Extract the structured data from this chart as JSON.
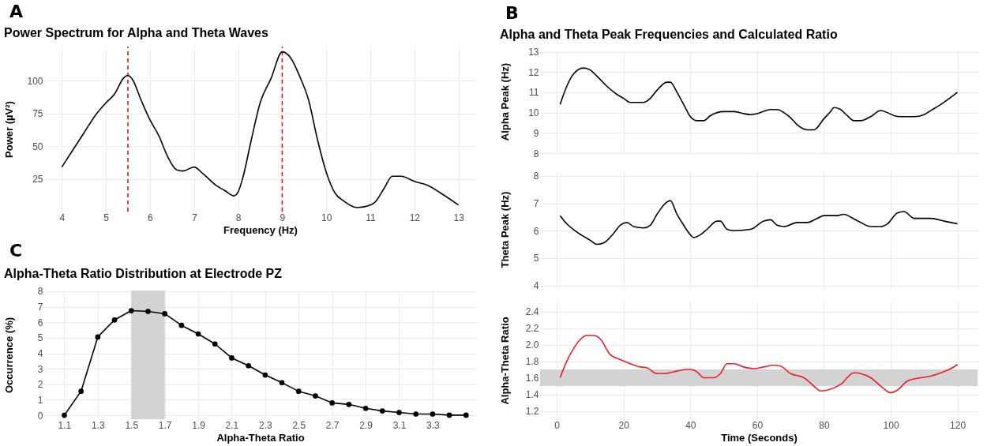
{
  "chart_data": [
    {
      "type": "line",
      "title": "Power Spectrum for Alpha and Theta Waves",
      "xlabel": "Frequency (Hz)",
      "ylabel": "Power (µV²)",
      "annotations": [
        "A"
      ],
      "series": [
        {
          "color": "#000000",
          "x": [
            4,
            4.25,
            4.5,
            4.75,
            5,
            5.2,
            5.4,
            5.5,
            5.6,
            5.8,
            6,
            6.2,
            6.4,
            6.6,
            6.75,
            7,
            7.2,
            7.5,
            7.7,
            7.9,
            8,
            8.1,
            8.3,
            8.5,
            8.75,
            9,
            9.2,
            9.4,
            9.6,
            9.8,
            10,
            10.2,
            10.4,
            10.7,
            11,
            11.1,
            11.3,
            11.5,
            11.7,
            12,
            12.3,
            12.6,
            13
          ],
          "values": [
            34,
            47,
            60,
            73,
            83,
            90,
            102,
            104,
            101,
            85,
            70,
            58,
            42,
            32,
            31,
            34,
            29,
            20,
            16,
            12,
            15,
            25,
            55,
            83,
            102,
            122,
            117,
            103,
            85,
            55,
            30,
            14,
            8,
            3,
            5,
            7,
            17,
            27,
            27,
            23,
            20,
            14,
            5
          ]
        }
      ],
      "ref_lines": [
        {
          "axis": "x",
          "value": 5.5,
          "color": "#ff0000",
          "line_style": "dashed"
        },
        {
          "axis": "x",
          "value": 9,
          "color": "#ff0000",
          "line_style": "dashed"
        }
      ],
      "xlim": [
        3.6,
        13.4
      ],
      "xticks": [
        4,
        5,
        6,
        7,
        8,
        9,
        10,
        11,
        12,
        13
      ],
      "ylim": [
        0,
        126
      ],
      "yticks": [
        25,
        50,
        75,
        100
      ],
      "grid": true
    },
    {
      "type": "line",
      "title": "Alpha and Theta Peak Frequencies and Calculated Ratio",
      "ylabel": "Alpha Peak (Hz)",
      "annotations": [
        "B"
      ],
      "series": [
        {
          "color": "#000000",
          "x": [
            1,
            3,
            5,
            8,
            10,
            12,
            15,
            18,
            20,
            22,
            26,
            28,
            30,
            33,
            34,
            36,
            38,
            40,
            42,
            44,
            46,
            50,
            53,
            56,
            58,
            60,
            64,
            66,
            68,
            70,
            72,
            75,
            77,
            80,
            82,
            83,
            85,
            87,
            89,
            91,
            94,
            97,
            99,
            101,
            103,
            107,
            110,
            112,
            115,
            120
          ],
          "values": [
            10.4,
            11.3,
            11.9,
            12.2,
            12.1,
            11.8,
            11.3,
            10.9,
            10.7,
            10.5,
            10.5,
            10.7,
            11.1,
            11.5,
            11.5,
            11,
            10.4,
            9.8,
            9.6,
            9.6,
            9.85,
            10.05,
            10.05,
            9.95,
            9.9,
            9.95,
            10.15,
            10.15,
            10,
            9.75,
            9.4,
            9.15,
            9.15,
            9.7,
            10.05,
            10.25,
            10.15,
            9.85,
            9.6,
            9.6,
            9.8,
            10.1,
            10,
            9.85,
            9.8,
            9.8,
            9.9,
            10.1,
            10.4,
            11
          ]
        }
      ],
      "xlim": [
        -5,
        126
      ],
      "xticks": [
        0,
        20,
        40,
        60,
        80,
        100,
        120
      ],
      "ylim": [
        8,
        13.1
      ],
      "yticks": [
        8,
        9,
        10,
        11,
        12,
        13
      ],
      "grid": true,
      "tick_labels": "y"
    },
    {
      "type": "line",
      "ylabel": "Theta Peak (Hz)",
      "series": [
        {
          "color": "#000000",
          "x": [
            1,
            3,
            6,
            10,
            12,
            14,
            17,
            19,
            21,
            23,
            26,
            28,
            30,
            33,
            34,
            36,
            38,
            40,
            41,
            43,
            45,
            48,
            49,
            51,
            53,
            58,
            62,
            64,
            66,
            68,
            72,
            75,
            78,
            80,
            84,
            86,
            88,
            91,
            94,
            97,
            99,
            102,
            104,
            107,
            112,
            116,
            120
          ],
          "values": [
            6.55,
            6.25,
            5.95,
            5.65,
            5.5,
            5.55,
            5.9,
            6.2,
            6.3,
            6.15,
            6.1,
            6.2,
            6.6,
            7.05,
            7.1,
            6.6,
            6.2,
            5.85,
            5.75,
            5.85,
            6.05,
            6.35,
            6.35,
            6.05,
            6,
            6.05,
            6.35,
            6.4,
            6.2,
            6.15,
            6.3,
            6.3,
            6.45,
            6.55,
            6.55,
            6.6,
            6.5,
            6.3,
            6.15,
            6.15,
            6.25,
            6.65,
            6.7,
            6.45,
            6.45,
            6.35,
            6.25
          ]
        }
      ],
      "xlim": [
        -5,
        126
      ],
      "xticks": [
        0,
        20,
        40,
        60,
        80,
        100,
        120
      ],
      "ylim": [
        3.9,
        8.2
      ],
      "yticks": [
        4,
        5,
        6,
        7,
        8
      ],
      "grid": true,
      "tick_labels": "y"
    },
    {
      "type": "line",
      "xlabel": "Time (Seconds)",
      "ylabel": "Alpha-Theta Ratio",
      "series": [
        {
          "color": "#ee1c25",
          "x": [
            1,
            3,
            5,
            7,
            9,
            11,
            13,
            16,
            19,
            22,
            25,
            27,
            30,
            32,
            36,
            39,
            40,
            42,
            44,
            47,
            49,
            51,
            53,
            56,
            59,
            62,
            65,
            67,
            70,
            74,
            77,
            79,
            81,
            85,
            89,
            91,
            94,
            97,
            100,
            102,
            105,
            109,
            112,
            115,
            118,
            120
          ],
          "values": [
            1.6,
            1.8,
            1.95,
            2.06,
            2.11,
            2.11,
            2.07,
            1.88,
            1.82,
            1.77,
            1.73,
            1.72,
            1.65,
            1.65,
            1.68,
            1.7,
            1.7,
            1.67,
            1.6,
            1.6,
            1.65,
            1.77,
            1.77,
            1.73,
            1.71,
            1.73,
            1.75,
            1.74,
            1.65,
            1.6,
            1.5,
            1.44,
            1.45,
            1.52,
            1.66,
            1.65,
            1.6,
            1.5,
            1.42,
            1.45,
            1.56,
            1.6,
            1.62,
            1.66,
            1.71,
            1.76
          ]
        }
      ],
      "bands": [
        {
          "axis": "y",
          "from": 1.5,
          "to": 1.7,
          "color": "#d3d3d3"
        }
      ],
      "xlim": [
        -5,
        126
      ],
      "xticks": [
        0,
        20,
        40,
        60,
        80,
        100,
        120
      ],
      "ylim": [
        1.1,
        2.52
      ],
      "yticks": [
        1.2,
        1.4,
        1.6,
        1.8,
        {
          "value": 2,
          "label": "2.0"
        },
        2.2,
        2.4
      ],
      "grid": true
    },
    {
      "type": "line",
      "title": "Alpha-Theta Ratio Distribution at Electrode PZ",
      "xlabel": "Alpha-Theta Ratio",
      "ylabel": "Occurrence (%)",
      "annotations": [
        "C"
      ],
      "marker": "circle",
      "series": [
        {
          "color": "#000000",
          "x": [
            1.1,
            1.2,
            1.3,
            1.4,
            1.5,
            1.6,
            1.7,
            1.8,
            1.9,
            2.0,
            2.1,
            2.2,
            2.3,
            2.4,
            2.5,
            2.6,
            2.7,
            2.8,
            2.9,
            3.0,
            3.1,
            3.2,
            3.3,
            3.4,
            3.5
          ],
          "values": [
            0,
            1.55,
            5.05,
            6.15,
            6.75,
            6.7,
            6.55,
            5.8,
            5.25,
            4.6,
            3.7,
            3.2,
            2.6,
            2.1,
            1.55,
            1.25,
            0.8,
            0.7,
            0.45,
            0.28,
            0.18,
            0.08,
            0.08,
            0.01,
            0.01
          ]
        }
      ],
      "bands": [
        {
          "axis": "x",
          "from": 1.5,
          "to": 1.7,
          "color": "#d3d3d3"
        }
      ],
      "xlim": [
        0.98,
        3.56
      ],
      "xticks": [
        1.1,
        1.3,
        1.5,
        1.7,
        1.9,
        2.1,
        2.3,
        2.5,
        2.7,
        2.9,
        3.1,
        3.3
      ],
      "ylim": [
        -0.25,
        8.05
      ],
      "yticks": [
        0,
        1,
        2,
        3,
        4,
        5,
        6,
        7,
        8
      ],
      "grid": true
    }
  ]
}
